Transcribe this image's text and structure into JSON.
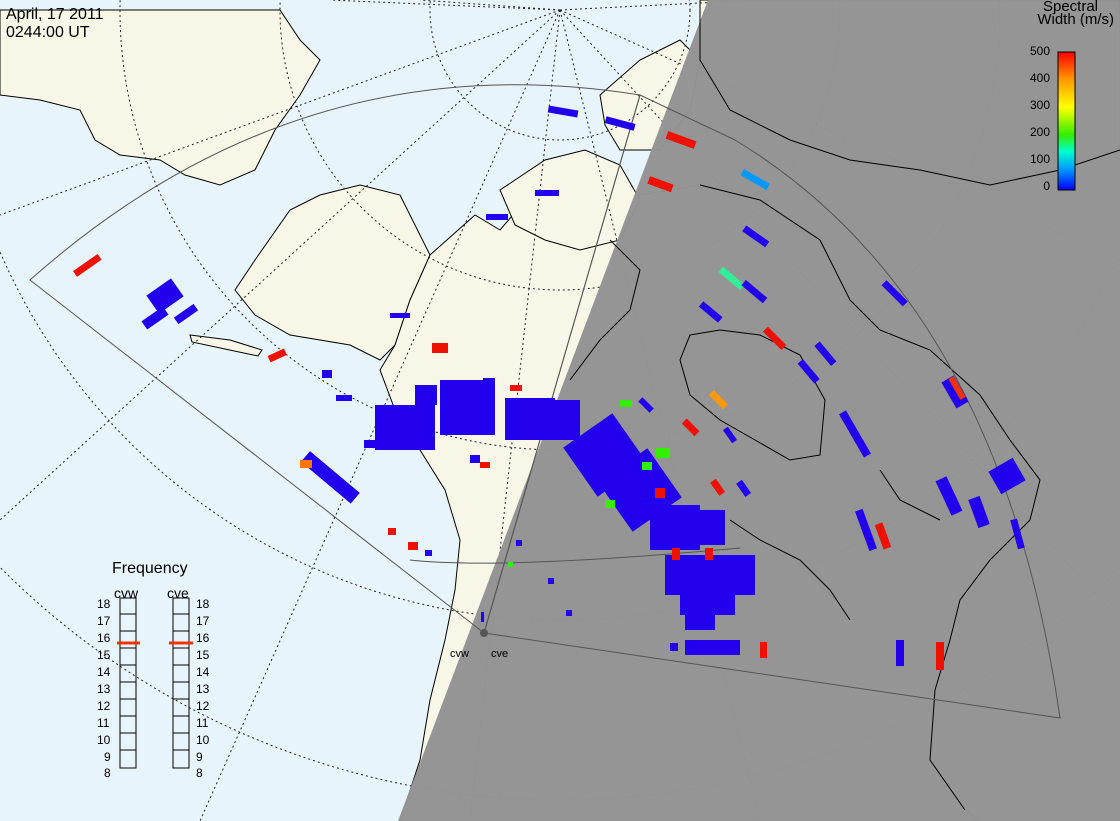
{
  "header": {
    "date": "April, 17 2011",
    "time": "0244:00 UT"
  },
  "colorbar": {
    "title_line1": "Spectral",
    "title_line2": "Width (m/s)",
    "ticks": [
      "500",
      "400",
      "300",
      "200",
      "100",
      "0"
    ],
    "scale_colors": [
      "#ff0000",
      "#ff9900",
      "#ffff00",
      "#33ee00",
      "#00ffcc",
      "#0099ff",
      "#0000ff"
    ]
  },
  "frequency_panel": {
    "title": "Frequency",
    "radars": [
      {
        "name": "cvw",
        "frequency_mhz": 15.6
      },
      {
        "name": "cve",
        "frequency_mhz": 15.6
      }
    ],
    "scale": [
      "18",
      "17",
      "16",
      "15",
      "14",
      "13",
      "12",
      "11",
      "10",
      "9",
      "8"
    ]
  },
  "sites": [
    "cvw",
    "cve"
  ],
  "colors": {
    "ocean": "#e8f4fb",
    "land": "#f7f6e7",
    "night_shade": "#939393",
    "low_width": "#2200ee",
    "high_width": "#ee1100",
    "freq_marker": "#ee3300"
  }
}
